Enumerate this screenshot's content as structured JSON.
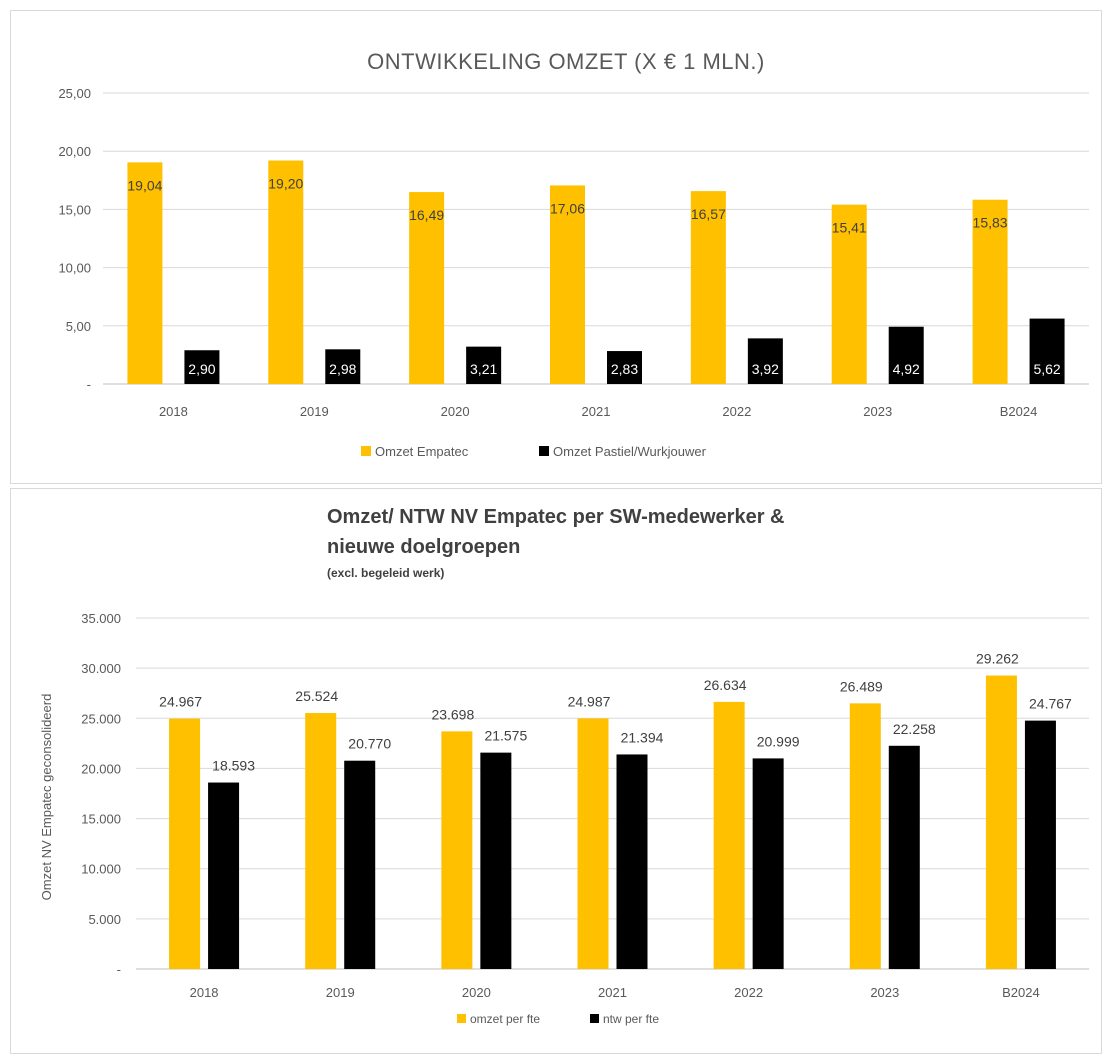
{
  "chart_data": [
    {
      "type": "bar",
      "title": "ONTWIKKELING OMZET (X € 1 MLN.)",
      "categories": [
        "2018",
        "2019",
        "2020",
        "2021",
        "2022",
        "2023",
        "B2024"
      ],
      "series": [
        {
          "name": "Omzet Empatec",
          "color": "#ffc000",
          "values": [
            19.04,
            19.2,
            16.49,
            17.06,
            16.57,
            15.41,
            15.83
          ],
          "labels": [
            "19,04",
            "19,20",
            "16,49",
            "17,06",
            "16,57",
            "15,41",
            "15,83"
          ]
        },
        {
          "name": "Omzet Pastiel/Wurkjouwer",
          "color": "#000000",
          "values": [
            2.9,
            2.98,
            3.21,
            2.83,
            3.92,
            4.92,
            5.62
          ],
          "labels": [
            "2,90",
            "2,98",
            "3,21",
            "2,83",
            "3,92",
            "4,92",
            "5,62"
          ]
        }
      ],
      "ylim": [
        0,
        25
      ],
      "yticks": [
        0,
        5,
        10,
        15,
        20,
        25
      ],
      "ytick_labels": [
        "-",
        "5,00",
        "10,00",
        "15,00",
        "20,00",
        "25,00"
      ],
      "grid": true,
      "legend": "bottom"
    },
    {
      "type": "bar",
      "title": "Omzet/ NTW NV Empatec per SW-medewerker & nieuwe doelgroepen",
      "title_lines": [
        "Omzet/ NTW NV Empatec per SW-medewerker &",
        "nieuwe doelgroepen"
      ],
      "subtitle": "(excl. begeleid werk)",
      "ylabel": "Omzet NV Empatec geconsolideerd",
      "categories": [
        "2018",
        "2019",
        "2020",
        "2021",
        "2022",
        "2023",
        "B2024"
      ],
      "series": [
        {
          "name": "omzet per fte",
          "color": "#ffc000",
          "values": [
            24967,
            25524,
            23698,
            24987,
            26634,
            26489,
            29262
          ],
          "labels": [
            "24.967",
            "25.524",
            "23.698",
            "24.987",
            "26.634",
            "26.489",
            "29.262"
          ]
        },
        {
          "name": "ntw per fte",
          "color": "#000000",
          "values": [
            18593,
            20770,
            21575,
            21394,
            20999,
            22258,
            24767
          ],
          "labels": [
            "18.593",
            "20.770",
            "21.575",
            "21.394",
            "20.999",
            "22.258",
            "24.767"
          ]
        }
      ],
      "ylim": [
        0,
        35000
      ],
      "yticks": [
        0,
        5000,
        10000,
        15000,
        20000,
        25000,
        30000,
        35000
      ],
      "ytick_labels": [
        "-",
        "5.000",
        "10.000",
        "15.000",
        "20.000",
        "25.000",
        "30.000",
        "35.000"
      ],
      "grid": true,
      "legend": "bottom"
    }
  ]
}
